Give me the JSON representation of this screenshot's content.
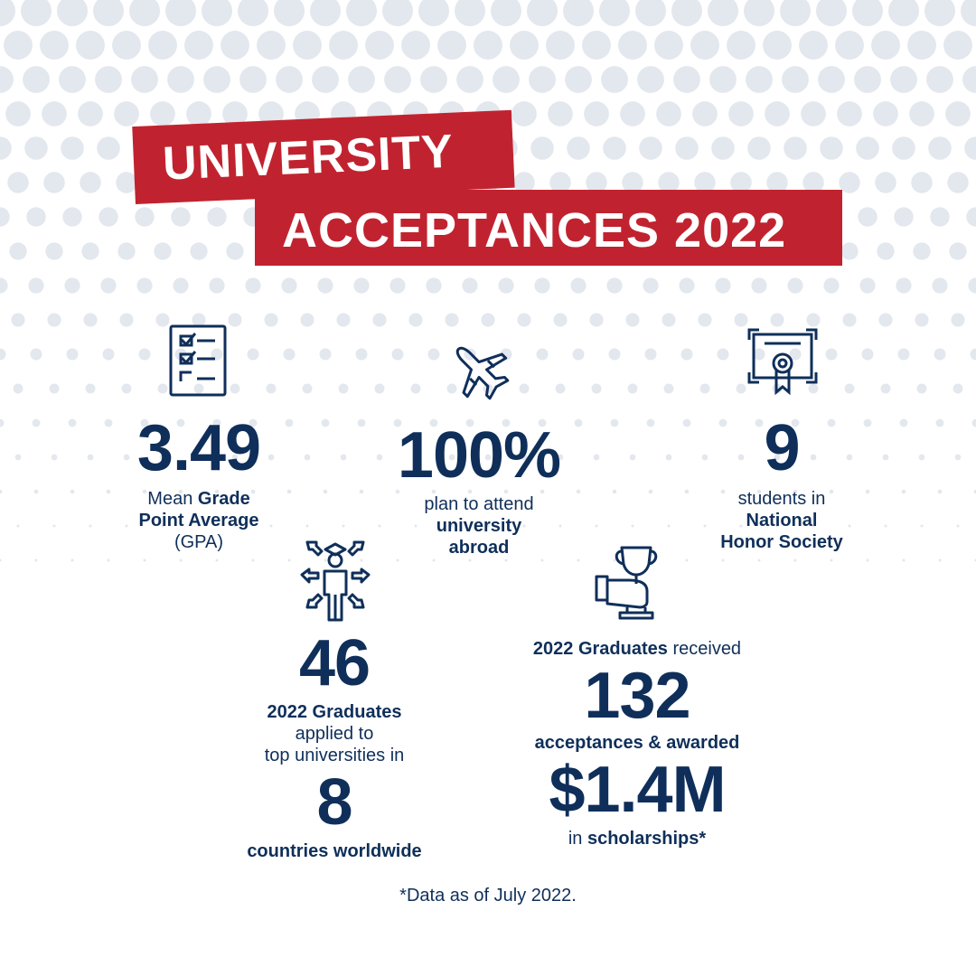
{
  "title": {
    "line1": "UNIVERSITY",
    "line2": "ACCEPTANCES 2022"
  },
  "colors": {
    "brand_red": "#c0232f",
    "navy": "#0f2f5a",
    "dot_gray": "#e3e7ee"
  },
  "stats": {
    "gpa": {
      "icon": "checklist-icon",
      "value": "3.49",
      "pre": "Mean ",
      "bold1": "Grade",
      "bold2": "Point Average",
      "line3": "(GPA)"
    },
    "abroad": {
      "icon": "airplane-icon",
      "value": "100%",
      "line1": "plan to attend",
      "bold1": "university",
      "bold2": "abroad"
    },
    "honor": {
      "icon": "certificate-icon",
      "value": "9",
      "line1": "students in",
      "bold1": "National",
      "bold2": "Honor Society"
    },
    "applied": {
      "icon": "graduate-arrows-icon",
      "value": "46",
      "bold1": "2022 Graduates",
      "line2": "applied to",
      "line3": "top universities in",
      "value2": "8",
      "bold2": "countries worldwide"
    },
    "awards": {
      "icon": "trophy-hand-icon",
      "bold1": "2022 Graduates",
      "post1": " received",
      "value": "132",
      "bold2": "acceptances & awarded",
      "value2": "$1.4M",
      "pre3": "in ",
      "bold3": "scholarships*"
    }
  },
  "footnote": "*Data as of July 2022."
}
